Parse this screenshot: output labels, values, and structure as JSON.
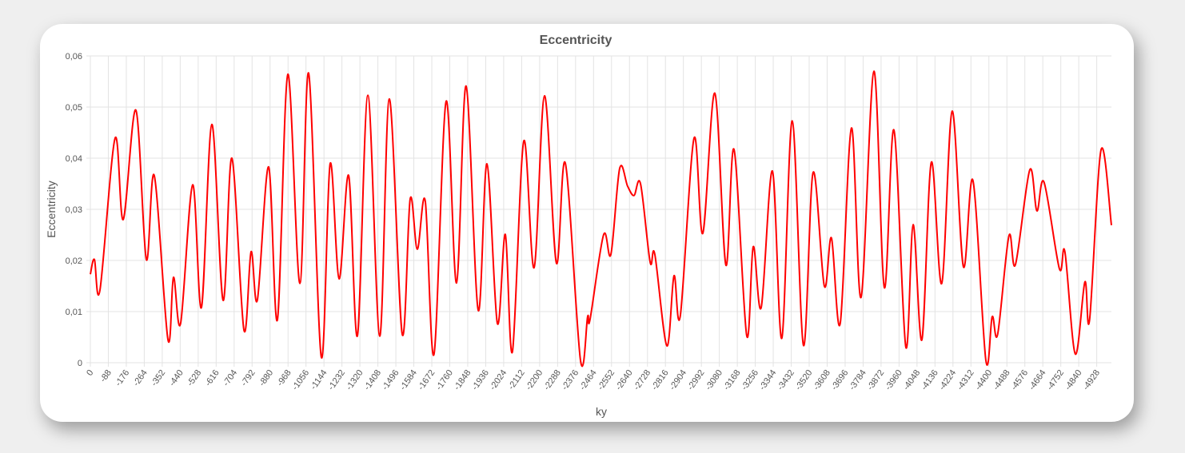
{
  "chart_data": {
    "type": "line",
    "title": "Eccentricity",
    "x_label": "ky",
    "y_label": "Eccentricity",
    "x": [
      0,
      -20,
      -47,
      -121,
      -161,
      -223,
      -274,
      -313,
      -380,
      -407,
      -442,
      -501,
      -544,
      -595,
      -650,
      -693,
      -752,
      -787,
      -818,
      -873,
      -916,
      -967,
      -1026,
      -1069,
      -1131,
      -1174,
      -1218,
      -1265,
      -1308,
      -1359,
      -1417,
      -1464,
      -1527,
      -1566,
      -1601,
      -1640,
      -1683,
      -1742,
      -1793,
      -1840,
      -1899,
      -1942,
      -1993,
      -2032,
      -2067,
      -2122,
      -2173,
      -2224,
      -2282,
      -2326,
      -2400,
      -2435,
      -2447,
      -2513,
      -2549,
      -2592,
      -2631,
      -2662,
      -2694,
      -2741,
      -2764,
      -2823,
      -2858,
      -2889,
      -2956,
      -2999,
      -3058,
      -3112,
      -3152,
      -3214,
      -3246,
      -3285,
      -3340,
      -3386,
      -3437,
      -3492,
      -3539,
      -3594,
      -3629,
      -3672,
      -3727,
      -3774,
      -3837,
      -3888,
      -3935,
      -3993,
      -4029,
      -4072,
      -4118,
      -4169,
      -4220,
      -4275,
      -4322,
      -4385,
      -4416,
      -4443,
      -4498,
      -4530,
      -4600,
      -4635,
      -4670,
      -4745,
      -4772,
      -4823,
      -4870,
      -4893,
      -4949,
      -5000
    ],
    "series": [
      {
        "name": "Eccentricity",
        "color": "#ff0000",
        "values": [
          0.0173,
          0.0202,
          0.0142,
          0.0439,
          0.028,
          0.0494,
          0.0202,
          0.0366,
          0.0045,
          0.0167,
          0.0077,
          0.0348,
          0.0108,
          0.0466,
          0.0122,
          0.04,
          0.0064,
          0.0217,
          0.0123,
          0.0383,
          0.0084,
          0.0564,
          0.0155,
          0.0566,
          0.0011,
          0.0389,
          0.0164,
          0.0366,
          0.0053,
          0.0523,
          0.0052,
          0.0516,
          0.0056,
          0.032,
          0.0222,
          0.0316,
          0.0017,
          0.0511,
          0.0156,
          0.0541,
          0.0103,
          0.0389,
          0.0077,
          0.0251,
          0.0022,
          0.0433,
          0.0186,
          0.0522,
          0.0195,
          0.039,
          0.0005,
          0.009,
          0.0085,
          0.025,
          0.0212,
          0.038,
          0.0345,
          0.0327,
          0.035,
          0.0197,
          0.0212,
          0.0033,
          0.017,
          0.0092,
          0.0439,
          0.0253,
          0.0527,
          0.0191,
          0.0417,
          0.0053,
          0.0227,
          0.0108,
          0.0375,
          0.0048,
          0.0473,
          0.0034,
          0.0372,
          0.015,
          0.0244,
          0.0077,
          0.0459,
          0.0128,
          0.057,
          0.0147,
          0.0455,
          0.0031,
          0.027,
          0.0045,
          0.0392,
          0.0155,
          0.0492,
          0.0188,
          0.0356,
          0.0005,
          0.009,
          0.0056,
          0.0248,
          0.0192,
          0.0377,
          0.0297,
          0.0353,
          0.0184,
          0.0217,
          0.0017,
          0.0158,
          0.0084,
          0.0416,
          0.0269
        ]
      }
    ],
    "xlim": [
      0,
      -5000
    ],
    "xticks": [
      0,
      -88,
      -176,
      -264,
      -352,
      -440,
      -528,
      -616,
      -704,
      -792,
      -880,
      -968,
      -1056,
      -1144,
      -1232,
      -1320,
      -1408,
      -1496,
      -1584,
      -1672,
      -1760,
      -1848,
      -1936,
      -2024,
      -2112,
      -2200,
      -2288,
      -2376,
      -2464,
      -2552,
      -2640,
      -2728,
      -2816,
      -2904,
      -2992,
      -3080,
      -3168,
      -3256,
      -3344,
      -3432,
      -3520,
      -3608,
      -3696,
      -3784,
      -3872,
      -3960,
      -4048,
      -4136,
      -4224,
      -4312,
      -4400,
      -4488,
      -4576,
      -4664,
      -4752,
      -4840,
      -4928
    ],
    "ylim": [
      0,
      0.06
    ],
    "yticks": [
      0,
      {
        "value": 0.01,
        "label": "0,01"
      },
      {
        "value": 0.02,
        "label": "0,02"
      },
      {
        "value": 0.03,
        "label": "0,03"
      },
      {
        "value": 0.04,
        "label": "0,04"
      },
      {
        "value": 0.05,
        "label": "0,05"
      },
      {
        "value": 0.06,
        "label": "0,06"
      }
    ],
    "grid": true
  }
}
